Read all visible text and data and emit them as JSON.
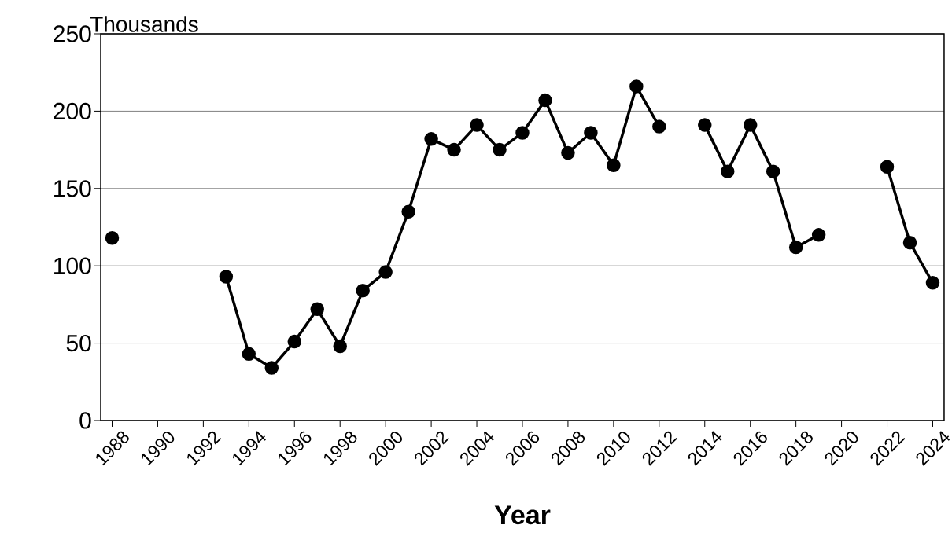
{
  "chart_data": {
    "type": "line",
    "xlabel": "Year",
    "ylabel": "Thousands",
    "x": [
      1988,
      1989,
      1990,
      1991,
      1992,
      1993,
      1994,
      1995,
      1996,
      1997,
      1998,
      1999,
      2000,
      2001,
      2002,
      2003,
      2004,
      2005,
      2006,
      2007,
      2008,
      2009,
      2010,
      2011,
      2012,
      2013,
      2014,
      2015,
      2016,
      2017,
      2018,
      2019,
      2020,
      2021,
      2022,
      2023,
      2024
    ],
    "series": [
      {
        "color": "#000000",
        "values": [
          118,
          null,
          null,
          null,
          null,
          93,
          43,
          34,
          51,
          72,
          48,
          84,
          96,
          135,
          182,
          175,
          191,
          175,
          186,
          207,
          173,
          186,
          165,
          216,
          190,
          null,
          191,
          161,
          191,
          161,
          112,
          120,
          null,
          null,
          164,
          115,
          89
        ]
      }
    ],
    "xlim": [
      1987.5,
      2024.5
    ],
    "xticks": [
      1988,
      1990,
      1992,
      1994,
      1996,
      1998,
      2000,
      2002,
      2004,
      2006,
      2008,
      2010,
      2012,
      2014,
      2016,
      2018,
      2020,
      2022,
      2024
    ],
    "ylim": [
      0,
      250
    ],
    "yticks": [
      0,
      50,
      100,
      150,
      200,
      250
    ],
    "grid": "y",
    "legend": false,
    "marker": "circle",
    "line_style": "solid"
  }
}
